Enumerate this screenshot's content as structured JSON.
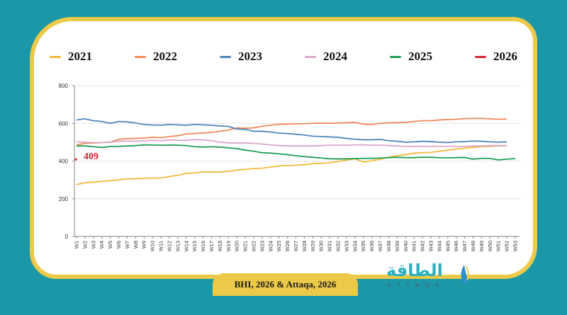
{
  "colors": {
    "background": "#1b97a8",
    "frame": "#ecc948",
    "s2021": "#f2b93b",
    "s2022": "#ee8a5a",
    "s2023": "#4f86bb",
    "s2024": "#dba7c9",
    "s2025": "#1f9e55",
    "s2026": "#d52234",
    "annotation": "#d52234"
  },
  "source": "BHI, 2026 & Attaqa, 2026",
  "logo": {
    "arabic": "الطاقة",
    "latin": "ATTAQA"
  },
  "chart_data": {
    "type": "line",
    "title": "",
    "xlabel": "",
    "ylabel": "",
    "ylim": [
      0,
      800
    ],
    "yticks": [
      "0",
      "200",
      "400",
      "600",
      "800"
    ],
    "grid": true,
    "legend_position": "top",
    "categories": [
      "W1",
      "W2",
      "W3",
      "W4",
      "W5",
      "W6",
      "W7",
      "W8",
      "W9",
      "W10",
      "W11",
      "W12",
      "W13",
      "W14",
      "W15",
      "W16",
      "W17",
      "W18",
      "W19",
      "W20",
      "W21",
      "W22",
      "W23",
      "W24",
      "W25",
      "W26",
      "W27",
      "W28",
      "W29",
      "W30",
      "W31",
      "W32",
      "W33",
      "W34",
      "W35",
      "W36",
      "W37",
      "W38",
      "W39",
      "W40",
      "W41",
      "W42",
      "W43",
      "W44",
      "W45",
      "W46",
      "W47",
      "W48",
      "W49",
      "W50",
      "W51",
      "W52",
      "W53"
    ],
    "series": [
      {
        "name": "2021",
        "color": "#f2b93b",
        "values": [
          275,
          285,
          288,
          292,
          296,
          300,
          305,
          306,
          309,
          310,
          310,
          318,
          324,
          335,
          337,
          343,
          342,
          342,
          345,
          352,
          356,
          360,
          362,
          368,
          374,
          376,
          378,
          380,
          386,
          388,
          390,
          398,
          405,
          412,
          395,
          402,
          410,
          420,
          428,
          434,
          442,
          444,
          446,
          452,
          458,
          464,
          468,
          472,
          476,
          478,
          480,
          482,
          null
        ]
      },
      {
        "name": "2022",
        "color": "#ee8a5a",
        "values": [
          485,
          494,
          496,
          498,
          500,
          515,
          519,
          520,
          522,
          526,
          524,
          530,
          534,
          544,
          546,
          549,
          552,
          558,
          564,
          576,
          574,
          576,
          585,
          590,
          595,
          596,
          598,
          598,
          600,
          602,
          600,
          602,
          603,
          605,
          596,
          594,
          600,
          603,
          604,
          605,
          610,
          614,
          614,
          618,
          620,
          622,
          625,
          626,
          626,
          624,
          622,
          622,
          null
        ]
      },
      {
        "name": "2023",
        "color": "#4f86bb",
        "values": [
          618,
          624,
          614,
          610,
          600,
          610,
          608,
          602,
          594,
          591,
          590,
          594,
          592,
          590,
          594,
          592,
          590,
          586,
          584,
          570,
          568,
          558,
          558,
          554,
          548,
          546,
          542,
          538,
          532,
          530,
          528,
          526,
          520,
          516,
          513,
          513,
          515,
          508,
          505,
          500,
          502,
          505,
          503,
          500,
          498,
          502,
          503,
          506,
          505,
          502,
          500,
          502,
          null
        ]
      },
      {
        "name": "2024",
        "color": "#dba7c9",
        "values": [
          502,
          500,
          498,
          498,
          500,
          505,
          506,
          505,
          508,
          510,
          508,
          512,
          510,
          510,
          514,
          512,
          508,
          500,
          496,
          496,
          496,
          494,
          490,
          486,
          482,
          480,
          480,
          480,
          480,
          482,
          484,
          484,
          484,
          486,
          486,
          484,
          484,
          482,
          480,
          478,
          478,
          478,
          478,
          478,
          478,
          478,
          478,
          480,
          480,
          482,
          482,
          482,
          null
        ]
      },
      {
        "name": "2025",
        "color": "#1f9e55",
        "values": [
          480,
          480,
          476,
          472,
          477,
          478,
          480,
          482,
          486,
          485,
          484,
          485,
          484,
          482,
          476,
          474,
          476,
          474,
          470,
          466,
          458,
          452,
          444,
          442,
          438,
          434,
          428,
          424,
          420,
          416,
          412,
          411,
          412,
          413,
          414,
          414,
          416,
          418,
          420,
          418,
          418,
          420,
          420,
          418,
          417,
          418,
          419,
          410,
          414,
          414,
          406,
          410,
          413
        ]
      },
      {
        "name": "2026",
        "color": "#d52234",
        "values": [
          409,
          null,
          null,
          null,
          null,
          null,
          null,
          null,
          null,
          null,
          null,
          null,
          null,
          null,
          null,
          null,
          null,
          null,
          null,
          null,
          null,
          null,
          null,
          null,
          null,
          null,
          null,
          null,
          null,
          null,
          null,
          null,
          null,
          null,
          null,
          null,
          null,
          null,
          null,
          null,
          null,
          null,
          null,
          null,
          null,
          null,
          null,
          null,
          null,
          null,
          null,
          null,
          null
        ]
      }
    ],
    "annotations": [
      {
        "text": "409",
        "series": "2026",
        "x": "W1",
        "y": 409
      }
    ]
  }
}
